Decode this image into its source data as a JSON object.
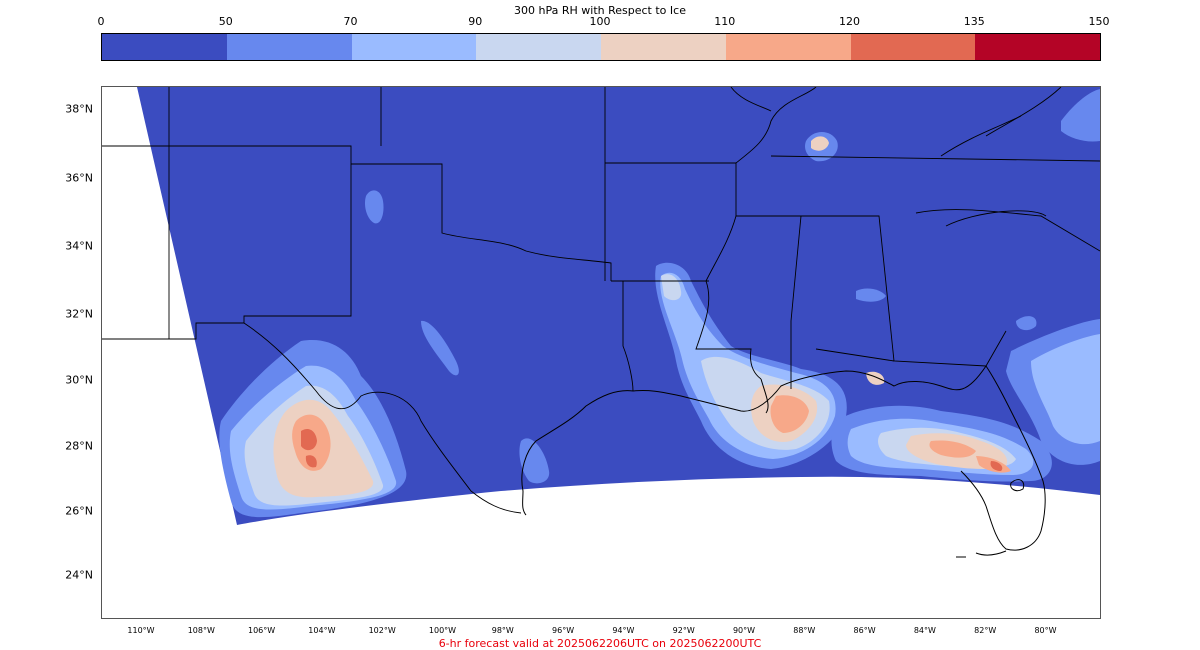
{
  "colorbar": {
    "title": "300 hPa RH with Respect to Ice",
    "ticks": [
      "0",
      "50",
      "70",
      "90",
      "100",
      "110",
      "120",
      "135",
      "150"
    ],
    "colors": [
      "#3b4cc0",
      "#6788ee",
      "#9abbff",
      "#c9d7f0",
      "#edd1c2",
      "#f7a889",
      "#e26952",
      "#b40426"
    ]
  },
  "map": {
    "lat_labels": [
      "38°N",
      "36°N",
      "34°N",
      "32°N",
      "30°N",
      "28°N",
      "26°N",
      "24°N"
    ],
    "lon_labels": [
      "110°W",
      "108°W",
      "106°W",
      "104°W",
      "102°W",
      "100°W",
      "98°W",
      "96°W",
      "94°W",
      "92°W",
      "90°W",
      "88°W",
      "86°W",
      "84°W",
      "82°W",
      "80°W"
    ],
    "background_color": "#3b4cc0",
    "boundary_color": "#000000"
  },
  "footer": {
    "text": "6-hr forecast valid at 2025062206UTC on 2025062200UTC",
    "color": "#e8000b"
  }
}
